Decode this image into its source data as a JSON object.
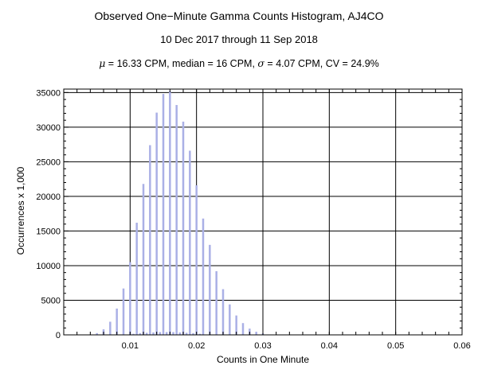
{
  "chart_data": {
    "type": "bar",
    "title": "Observed One−Minute Gamma Counts Histogram, AJ4CO",
    "subtitle": "10 Dec 2017 through 11 Sep 2018",
    "stats": {
      "mu_symbol": "μ",
      "mu_text": " = 16.33 CPM,   median = 16 CPM,   ",
      "sigma_symbol": "σ",
      "sigma_text": " = 4.07 CPM,   CV = 24.9%"
    },
    "xlabel": "Counts in One Minute",
    "ylabel": "Occurrences x 1,000",
    "xlim": [
      0,
      0.06
    ],
    "ylim": [
      0,
      35500
    ],
    "xticks": [
      "0.01",
      "0.02",
      "0.03",
      "0.04",
      "0.05",
      "0.06"
    ],
    "yticks": [
      "0",
      "5000",
      "10000",
      "15000",
      "20000",
      "25000",
      "30000",
      "35000"
    ],
    "grid": true,
    "bar_color": "#aab0e6",
    "series": [
      {
        "x": [
          0.004,
          0.005,
          0.006,
          0.007,
          0.008,
          0.009,
          0.01,
          0.011,
          0.012,
          0.013,
          0.014,
          0.015,
          0.016,
          0.017,
          0.018,
          0.019,
          0.02,
          0.021,
          0.022,
          0.023,
          0.024,
          0.025,
          0.026,
          0.027,
          0.028,
          0.029,
          0.03
        ],
        "values": [
          50,
          250,
          800,
          1900,
          3800,
          6700,
          10500,
          16200,
          21800,
          27400,
          32100,
          34800,
          35200,
          33200,
          30800,
          26600,
          21600,
          16800,
          13000,
          9200,
          6600,
          4400,
          2800,
          1700,
          900,
          450,
          200
        ]
      },
      {
        "x": [
          0.0105,
          0.0115,
          0.0125,
          0.0135,
          0.0145,
          0.0155,
          0.0165,
          0.0175,
          0.0185,
          0.0195,
          0.0205
        ],
        "values": [
          150,
          250,
          300,
          350,
          400,
          400,
          400,
          350,
          300,
          250,
          150
        ]
      }
    ]
  }
}
